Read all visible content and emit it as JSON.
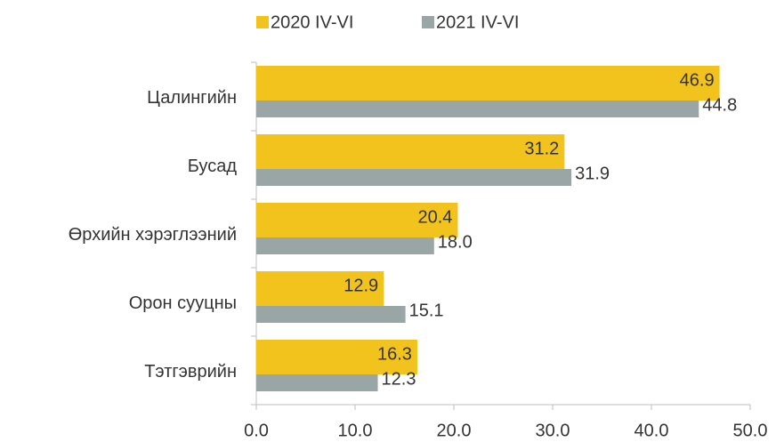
{
  "chart_data": {
    "type": "barh",
    "categories": [
      "Цалингийн",
      "Бусад",
      "Өрхийн хэрэглээний",
      "Орон сууцны",
      "Тэтгэврийн"
    ],
    "series": [
      {
        "name": "2020 IV-VI",
        "color": "#f2c31c",
        "values": [
          46.9,
          31.2,
          20.4,
          12.9,
          16.3
        ],
        "value_labels": [
          "46.9",
          "31.2",
          "20.4",
          "12.9",
          "16.3"
        ]
      },
      {
        "name": "2021 IV-VI",
        "color": "#9aa6a6",
        "values": [
          44.8,
          31.9,
          18.0,
          15.1,
          12.3
        ],
        "value_labels": [
          "44.8",
          "31.9",
          "18.0",
          "15.1",
          "12.3"
        ]
      }
    ],
    "xlim": [
      0,
      50
    ],
    "xticks": [
      {
        "value": 0,
        "label": "0.0"
      },
      {
        "value": 10,
        "label": "10.0"
      },
      {
        "value": 20,
        "label": "20.0"
      },
      {
        "value": 30,
        "label": "30.0"
      },
      {
        "value": 40,
        "label": "40.0"
      },
      {
        "value": 50,
        "label": "50.0"
      }
    ],
    "legend": "top"
  }
}
